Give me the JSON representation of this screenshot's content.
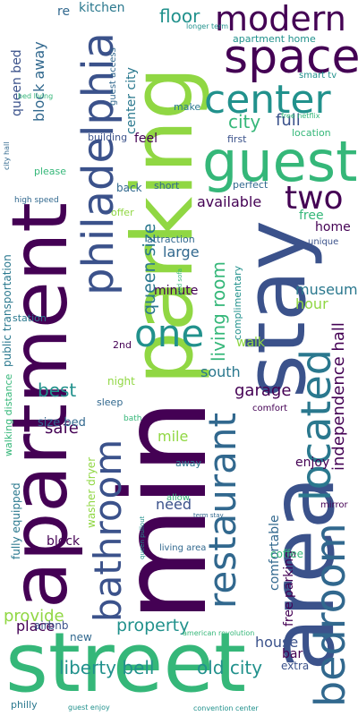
{
  "palette": {
    "purple": "#440154",
    "indigo": "#3b528b",
    "blue": "#31688e",
    "teal": "#21918c",
    "green": "#35b779",
    "lime": "#90d743",
    "mid": "#2a788e"
  },
  "words": [
    "apartment",
    "area",
    "street",
    "min",
    "parking",
    "stay",
    "bedroom",
    "guest",
    "space",
    "center",
    "modern",
    "philadelphia",
    "located",
    "bathroom",
    "one",
    "two",
    "restaurant",
    "liberty bell",
    "old city",
    "living room",
    "property",
    "queen size",
    "independence hall",
    "floor",
    "house",
    "garage",
    "best",
    "provide",
    "city",
    "full",
    "safe",
    "museum",
    "kitchen",
    "block away",
    "queen bed",
    "center city",
    "feel",
    "available",
    "home",
    "free",
    "large",
    "hour",
    "walk",
    "south",
    "mile",
    "enjoy",
    "comfortable",
    "free parking",
    "need",
    "block",
    "place",
    "bar",
    "fully equipped",
    "public transportation",
    "minute",
    "size bed",
    "washer dryer",
    "walking distance",
    "complimentary",
    "night",
    "extra",
    "coffee",
    "airbnb",
    "new",
    "philly",
    "re",
    "apartment home",
    "guest access",
    "smart tv",
    "location",
    "first",
    "perfect",
    "back",
    "short",
    "offer",
    "attraction",
    "unique",
    "building",
    "make",
    "2nd",
    "sleep",
    "comfort",
    "bath",
    "away",
    "allow",
    "mirror",
    "station",
    "high speed",
    "please",
    "bed living",
    "city hall",
    "longer term",
    "free netflix",
    "living area",
    "queen pullout",
    "term stay",
    "american revolution",
    "convention center",
    "guest enjoy",
    "bed sofa"
  ]
}
